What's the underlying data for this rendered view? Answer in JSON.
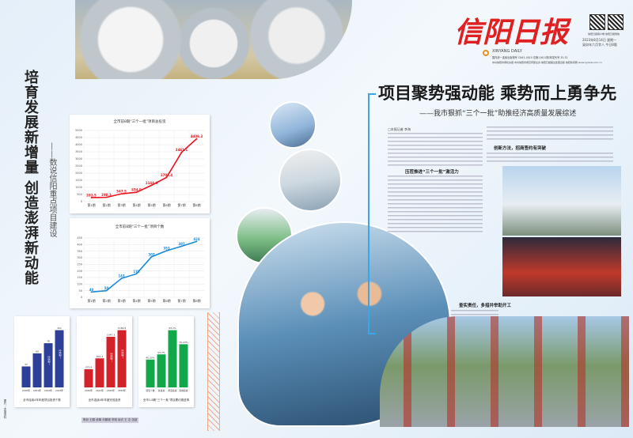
{
  "masthead": {
    "title": "信阳日报",
    "pinyin": "XINYANG DAILY",
    "issue_info": "国内统一连续出版物号 CN41-0010 总第11611期 邮发代号 35-32",
    "date": "2023年8月14日 星期一",
    "lunar": "癸卯年六月廿八 今日8版",
    "qr_caption": "信阳日报客户端 信阳日报微信",
    "links": "中共信阳市委机关报 中共信阳市委宣传部主办 信阳日报报业集团出版 信阳新闻网 www.xyxww.com.cn"
  },
  "left": {
    "title": "培育发展新增量 创造澎湃新动能",
    "subtitle": "——数说信阳重点项目建设"
  },
  "article": {
    "headline": "项目聚势强动能 乘势而上勇争先",
    "subheadline": "——我市狠抓“三个一批”助推经济高质量发展综述",
    "byline": "□本报记者 李海",
    "sections": [
      "压茬推进“三个一批”激活力",
      "创新方法，招商签约有突破",
      "查实责任，多措并举助开工"
    ]
  },
  "credits": "策划 王鹏 统筹 刘鹏程 李丽 版式 王 志 张超",
  "side_credit": "图片：本报资料",
  "chart_data": [
    {
      "type": "line",
      "title": "全市前8期“三个一批”项目总投资",
      "unit": "单位:亿元",
      "categories": [
        "第1期",
        "第2期",
        "第3期",
        "第4期",
        "第5期",
        "第6期",
        "第7期",
        "第8期"
      ],
      "values": [
        281.5,
        298.3,
        547.5,
        654.9,
        1144.6,
        1702.4,
        3461.1,
        4409.3
      ],
      "ylim": [
        0,
        5000
      ],
      "yticks": [
        0,
        500,
        1000,
        1500,
        2000,
        2500,
        3000,
        3500,
        4000,
        4500,
        5000
      ],
      "grid": true,
      "color": "#e8141e"
    },
    {
      "type": "line",
      "title": "全市前8期“三个一批”项目个数",
      "categories": [
        "第1期",
        "第2期",
        "第3期",
        "第4期",
        "第5期",
        "第6期",
        "第7期",
        "第8期"
      ],
      "values": [
        40,
        50,
        143,
        178,
        307,
        353,
        387,
        424
      ],
      "ylim": [
        0,
        450
      ],
      "yticks": [
        0,
        50,
        100,
        150,
        200,
        250,
        300,
        350,
        400,
        450
      ],
      "grid": true,
      "color": "#1a8ad8"
    },
    {
      "type": "bar",
      "title": "全市连续4年年度项目投资个数",
      "categories": [
        "2020年",
        "2021年",
        "2022年",
        "2023年"
      ],
      "values": [
        37,
        60,
        78,
        101
      ],
      "color": "#2e3f9a",
      "annotation": "全省第一"
    },
    {
      "type": "bar",
      "title": "全市连续4年年度完成投资",
      "unit": "单位:亿元",
      "categories": [
        "2020年",
        "2021年",
        "2022年",
        "2023年"
      ],
      "values": [
        375.9,
        601.2,
        1047.3,
        1184.6
      ],
      "color": "#d3222a",
      "annotation": "全省第一"
    },
    {
      "type": "bar",
      "title": "全市1-8期“三个一批”项目履约推进率",
      "categories": [
        "项目个数",
        "总投资",
        "年度投资",
        "完成投资"
      ],
      "values": [
        45.3,
        53.7,
        93.1,
        70.23
      ],
      "value_labels": [
        "45.30%",
        "53.7%",
        "93.1%",
        "70.23%"
      ],
      "color": "#12a84a"
    }
  ]
}
